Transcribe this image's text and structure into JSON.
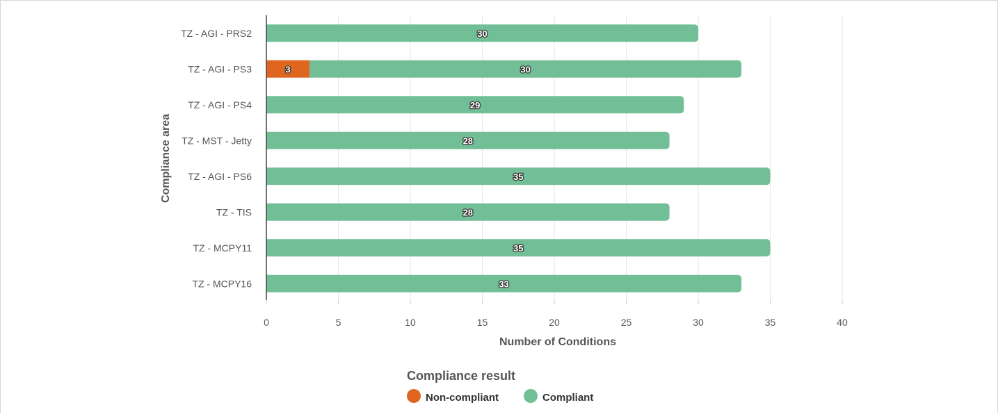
{
  "chart_data": {
    "type": "bar",
    "orientation": "horizontal",
    "stacked": true,
    "categories": [
      "TZ - AGI - PRS2",
      "TZ - AGI - PS3",
      "TZ - AGI - PS4",
      "TZ - MST - Jetty",
      "TZ - AGI - PS6",
      "TZ - TIS",
      "TZ - MCPY11",
      "TZ - MCPY16"
    ],
    "series": [
      {
        "name": "Non-compliant",
        "color": "#e0661f",
        "values": [
          0,
          3,
          0,
          0,
          0,
          0,
          0,
          0
        ]
      },
      {
        "name": "Compliant",
        "color": "#72be96",
        "values": [
          30,
          30,
          29,
          28,
          35,
          28,
          35,
          33
        ]
      }
    ],
    "xlabel": "Number of Conditions",
    "ylabel": "Compliance area",
    "xlim": [
      0,
      40
    ],
    "xticks": [
      0,
      5,
      10,
      15,
      20,
      25,
      30,
      35,
      40
    ],
    "grid": true,
    "legend": {
      "title": "Compliance result",
      "position": "bottom"
    }
  }
}
